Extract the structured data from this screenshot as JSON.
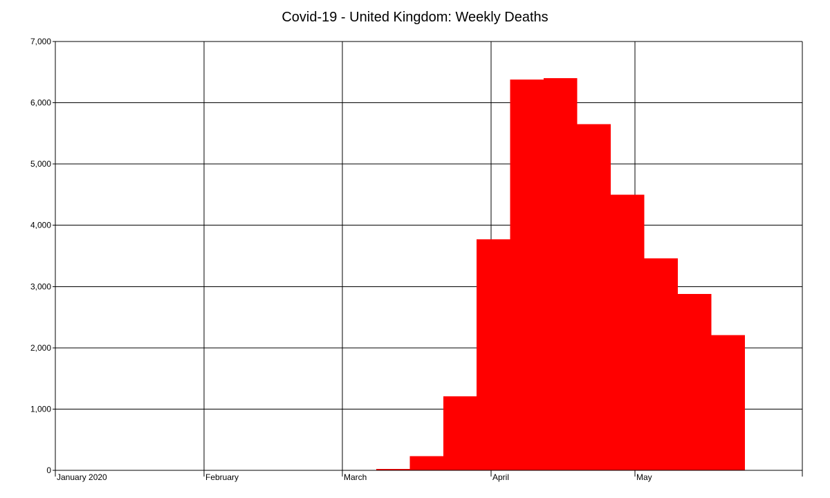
{
  "chart_data": {
    "type": "bar",
    "title": "Covid-19 - United Kingdom: Weekly Deaths",
    "xlabel": "",
    "ylabel": "",
    "ylim": [
      0,
      7000
    ],
    "y_ticks": [
      0,
      1000,
      2000,
      3000,
      4000,
      5000,
      6000,
      7000
    ],
    "y_tick_labels": [
      "0",
      "1,000",
      "2,000",
      "3,000",
      "4,000",
      "5,000",
      "6,000",
      "7,000"
    ],
    "x_range": [
      "2020-01-01",
      "2020-06-05"
    ],
    "x_ticks": [
      {
        "date": "2020-01-01",
        "label": "January 2020"
      },
      {
        "date": "2020-02-01",
        "label": "February"
      },
      {
        "date": "2020-03-01",
        "label": "March"
      },
      {
        "date": "2020-04-01",
        "label": "April"
      },
      {
        "date": "2020-05-01",
        "label": "May"
      }
    ],
    "grid": true,
    "bar_color": "#ff0000",
    "bars": [
      {
        "start": "2020-03-08",
        "end": "2020-03-15",
        "value": 20
      },
      {
        "start": "2020-03-15",
        "end": "2020-03-22",
        "value": 230
      },
      {
        "start": "2020-03-22",
        "end": "2020-03-29",
        "value": 1210
      },
      {
        "start": "2020-03-29",
        "end": "2020-04-05",
        "value": 3770
      },
      {
        "start": "2020-04-05",
        "end": "2020-04-12",
        "value": 6380
      },
      {
        "start": "2020-04-12",
        "end": "2020-04-19",
        "value": 6400
      },
      {
        "start": "2020-04-19",
        "end": "2020-04-26",
        "value": 5650
      },
      {
        "start": "2020-04-26",
        "end": "2020-05-03",
        "value": 4500
      },
      {
        "start": "2020-05-03",
        "end": "2020-05-10",
        "value": 3460
      },
      {
        "start": "2020-05-10",
        "end": "2020-05-17",
        "value": 2880
      },
      {
        "start": "2020-05-17",
        "end": "2020-05-24",
        "value": 2210
      }
    ]
  }
}
